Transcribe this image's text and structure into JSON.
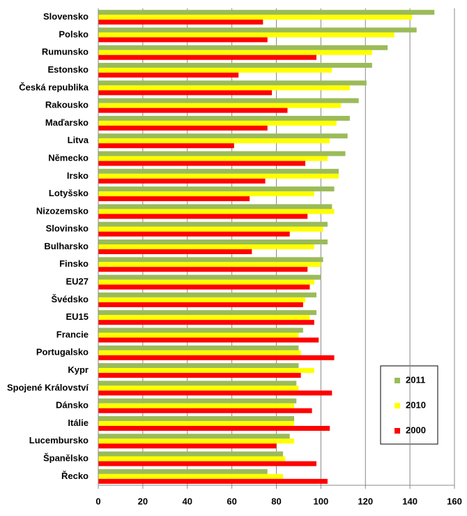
{
  "chart_data": {
    "type": "hbar",
    "categories": [
      "Slovensko",
      "Polsko",
      "Rumunsko",
      "Estonsko",
      "Česká republika",
      "Rakousko",
      "Maďarsko",
      "Litva",
      "Německo",
      "Irsko",
      "Lotyšsko",
      "Nizozemsko",
      "Slovinsko",
      "Bulharsko",
      "Finsko",
      "EU27",
      "Švédsko",
      "EU15",
      "Francie",
      "Portugalsko",
      "Kypr",
      "Spojené Království",
      "Dánsko",
      "Itálie",
      "Lucembursko",
      "Španělsko",
      "Řecko"
    ],
    "series": [
      {
        "name": "2011",
        "color": "#9bbb59",
        "values": [
          151,
          143,
          130,
          123,
          120.5,
          117,
          113,
          112,
          111,
          108,
          106,
          105,
          103,
          103,
          101,
          100,
          98,
          98,
          92,
          90,
          90,
          89,
          89,
          88,
          86,
          83,
          76
        ]
      },
      {
        "name": "2010",
        "color": "#ffff00",
        "values": [
          141,
          133,
          123,
          105,
          113,
          109,
          107,
          104,
          103,
          108,
          97,
          106,
          101,
          97,
          100,
          97,
          93,
          95,
          90,
          91,
          97,
          90,
          88,
          88,
          88,
          84,
          83
        ]
      },
      {
        "name": "2000",
        "color": "#ff0000",
        "values": [
          74,
          76,
          98,
          63,
          78,
          85,
          76,
          61,
          93,
          75,
          68,
          94,
          86,
          69,
          94,
          95,
          92,
          97,
          99,
          106,
          91,
          105,
          96,
          104,
          80,
          98,
          103
        ]
      }
    ],
    "xlim": [
      0,
      160
    ],
    "xticks": [
      0,
      20,
      40,
      60,
      80,
      100,
      120,
      140,
      160
    ],
    "grid": true
  }
}
